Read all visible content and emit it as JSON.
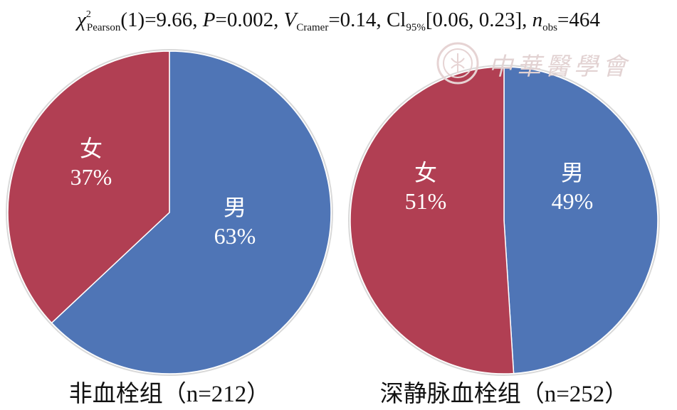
{
  "stats_header": {
    "chi": "χ",
    "chi_sup": "2",
    "chi_sub": "Pearson",
    "df_stat": "(1)=9.66, ",
    "p_letter": "P",
    "p_value": "=0.002, ",
    "v_letter": "V",
    "v_sub": "Cramer",
    "v_value": "=0.14, ",
    "ci_letters": "Cl",
    "ci_sub": "95%",
    "ci_value": "[0.06, 0.23], ",
    "n_letter": "n",
    "n_sub": "obs",
    "n_value": "=464"
  },
  "watermark": {
    "text": "中華醫學會",
    "color": "#e2d2d2"
  },
  "chart_data": [
    {
      "type": "pie",
      "caption": "非血栓组（n=212）",
      "slices": [
        {
          "label": "男",
          "pct_label": "63%",
          "value": 63,
          "color": "#4f75b6"
        },
        {
          "label": "女",
          "pct_label": "37%",
          "value": 37,
          "color": "#b13f53"
        }
      ]
    },
    {
      "type": "pie",
      "caption": "深静脉血栓组（n=252）",
      "slices": [
        {
          "label": "男",
          "pct_label": "49%",
          "value": 49,
          "color": "#4f75b6"
        },
        {
          "label": "女",
          "pct_label": "51%",
          "value": 51,
          "color": "#b13f53"
        }
      ]
    }
  ]
}
